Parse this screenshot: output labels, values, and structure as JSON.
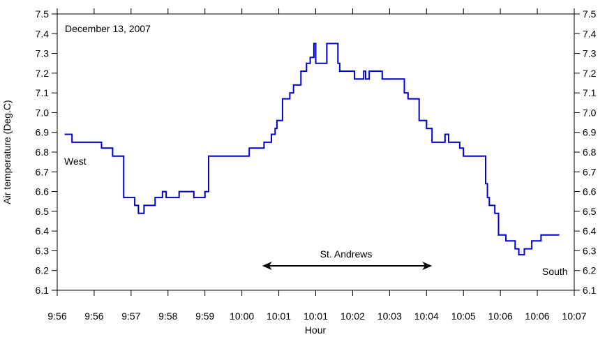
{
  "chart_data": {
    "type": "line",
    "xlabel": "Hour",
    "ylabel": "Air temperature (Deg.C)",
    "ylim": [
      6.1,
      7.5
    ],
    "xlim": [
      0,
      14
    ],
    "yticks": [
      6.1,
      6.2,
      6.3,
      6.4,
      6.5,
      6.6,
      6.7,
      6.8,
      6.9,
      7.0,
      7.1,
      7.2,
      7.3,
      7.4,
      7.5
    ],
    "ytick_labels": [
      "6.1",
      "6.2",
      "6.3",
      "6.4",
      "6.5",
      "6.6",
      "6.7",
      "6.8",
      "6.9",
      "7.0",
      "7.1",
      "7.2",
      "7.3",
      "7.4",
      "7.5"
    ],
    "xtick_labels": [
      "9:56",
      "9:56",
      "9:57",
      "9:58",
      "9:59",
      "10:00",
      "10:01",
      "10:01",
      "10:02",
      "10:03",
      "10:04",
      "10:05",
      "10:06",
      "10:06",
      "10:07"
    ],
    "line_color": "#0000cc",
    "annotations": {
      "date": "December 13, 2007",
      "start": "West",
      "end": "South",
      "region": "St. Andrews"
    },
    "region_arrow": {
      "from": 5.55,
      "to": 10.15
    },
    "series": [
      {
        "step": "post",
        "x": [
          0.2,
          0.4,
          1.2,
          1.5,
          1.8,
          2.1,
          2.2,
          2.35,
          2.65,
          2.85,
          2.95,
          3.3,
          3.7,
          4.0,
          4.1,
          5.2,
          5.6,
          5.8,
          5.9,
          5.95,
          6.1,
          6.3,
          6.4,
          6.55,
          6.6,
          6.75,
          6.85,
          6.95,
          7.0,
          7.1,
          7.15,
          7.25,
          7.3,
          7.6,
          7.65,
          8.0,
          8.05,
          8.3,
          8.35,
          8.45,
          8.5,
          8.8,
          9.4,
          9.5,
          9.6,
          9.8,
          10.0,
          10.15,
          10.2,
          10.3,
          10.5,
          10.6,
          10.9,
          11.0,
          11.15,
          11.25,
          11.3,
          11.6,
          11.65,
          11.7,
          11.85,
          11.95,
          12.15,
          12.4,
          12.5,
          12.65,
          12.85,
          12.9,
          13.1,
          13.2,
          13.5,
          13.6
        ],
        "y": [
          6.89,
          6.85,
          6.82,
          6.78,
          6.57,
          6.53,
          6.49,
          6.53,
          6.57,
          6.6,
          6.57,
          6.6,
          6.57,
          6.6,
          6.78,
          6.82,
          6.85,
          6.89,
          6.92,
          6.96,
          7.07,
          7.1,
          7.14,
          7.14,
          7.21,
          7.25,
          7.28,
          7.35,
          7.25,
          7.25,
          7.25,
          7.25,
          7.35,
          7.25,
          7.21,
          7.21,
          7.17,
          7.21,
          7.17,
          7.21,
          7.21,
          7.17,
          7.1,
          7.07,
          7.07,
          6.96,
          6.92,
          6.85,
          6.85,
          6.85,
          6.89,
          6.85,
          6.82,
          6.78,
          6.78,
          6.78,
          6.78,
          6.64,
          6.57,
          6.53,
          6.49,
          6.38,
          6.35,
          6.31,
          6.28,
          6.31,
          6.35,
          6.35,
          6.38,
          6.38,
          6.38,
          6.38
        ]
      }
    ]
  }
}
